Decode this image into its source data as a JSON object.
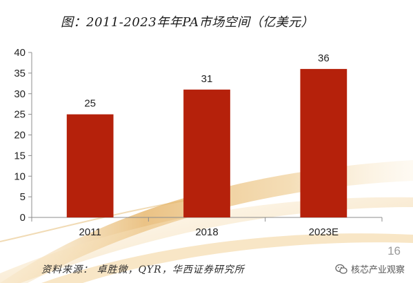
{
  "title": "图：2011-2023年年PA市场空间（亿美元）",
  "source": "资料来源：  卓胜微，QYR，华西证券研究所",
  "page_number": "16",
  "watermark": "核芯产业观察",
  "colors": {
    "bar": "#b5210b",
    "axis": "#8c8c8c"
  },
  "icons": {
    "watermark": "wechat-icon"
  },
  "chart_data": {
    "type": "bar",
    "categories": [
      "2011",
      "2018",
      "2023E"
    ],
    "values": [
      25,
      31,
      36
    ],
    "data_labels": [
      "25",
      "31",
      "36"
    ],
    "ylim": [
      0,
      40
    ],
    "yticks": [
      0,
      5,
      10,
      15,
      20,
      25,
      30,
      35,
      40
    ],
    "grid": false,
    "legend": "none"
  }
}
